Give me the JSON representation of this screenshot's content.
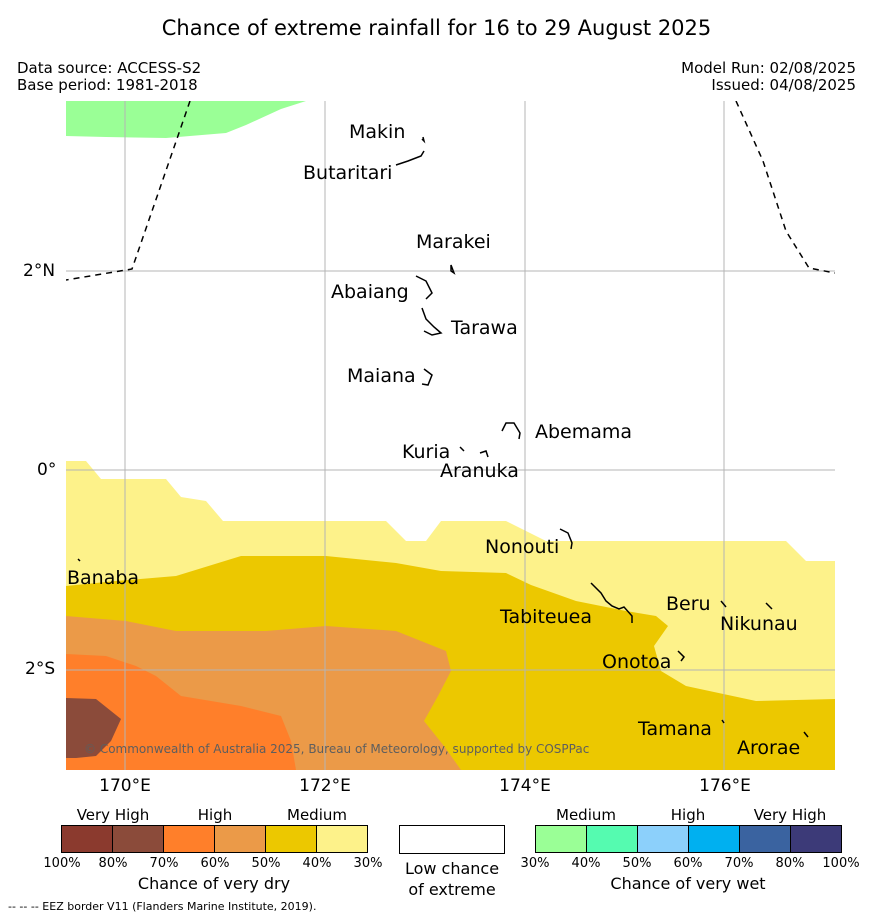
{
  "title": "Chance of extreme rainfall for 16 to 29 August 2025",
  "data_source": "Data source: ACCESS-S2",
  "base_period": "Base period: 1981-2018",
  "model_run": "Model Run: 02/08/2025",
  "issued": "Issued: 04/08/2025",
  "lat_labels": [
    "2°N",
    "0°",
    "2°S"
  ],
  "lon_labels": [
    "170°E",
    "172°E",
    "174°E",
    "176°E"
  ],
  "places": {
    "makin": "Makin",
    "butaritari": "Butaritari",
    "marakei": "Marakei",
    "abaiang": "Abaiang",
    "tarawa": "Tarawa",
    "maiana": "Maiana",
    "abemama": "Abemama",
    "kuria": "Kuria",
    "aranuka": "Aranuka",
    "nonouti": "Nonouti",
    "banaba": "Banaba",
    "tabiteuea": "Tabiteuea",
    "beru": "Beru",
    "nikunau": "Nikunau",
    "onotoa": "Onotoa",
    "tamana": "Tamana",
    "arorae": "Arorae"
  },
  "copyright": "© Commonwealth of Australia 2025, Bureau of Meteorology, supported by COSPPac",
  "dry_legend": {
    "headers": [
      "Very High",
      "High",
      "Medium"
    ],
    "colors": [
      "#8b3a2e",
      "#8b4b3a",
      "#ff7f2a",
      "#eb9a48",
      "#ecc800",
      "#fdf28a"
    ],
    "ticks": [
      "100%",
      "80%",
      "70%",
      "60%",
      "50%",
      "40%",
      "30%"
    ],
    "label": "Chance of very dry"
  },
  "low_legend": {
    "color": "#ffffff",
    "label_line1": "Low chance",
    "label_line2": "of extreme"
  },
  "wet_legend": {
    "headers": [
      "Medium",
      "High",
      "Very High"
    ],
    "colors": [
      "#9aff96",
      "#55fbb0",
      "#8cd0fb",
      "#00b0f0",
      "#3a63a0",
      "#3c3a78"
    ],
    "ticks": [
      "30%",
      "40%",
      "50%",
      "60%",
      "70%",
      "80%",
      "100%"
    ],
    "label": "Chance of very wet"
  },
  "footer": "--  --  -- EEZ border V11 (Flanders Marine Institute, 2019).",
  "colors": {
    "wet_medium": "#9aff96",
    "dry_medium_light": "#fdf28a",
    "dry_medium": "#ecc800",
    "dry_high_light": "#eb9a48",
    "dry_high": "#ff7f2a",
    "dry_very_high": "#8b4b3a"
  }
}
